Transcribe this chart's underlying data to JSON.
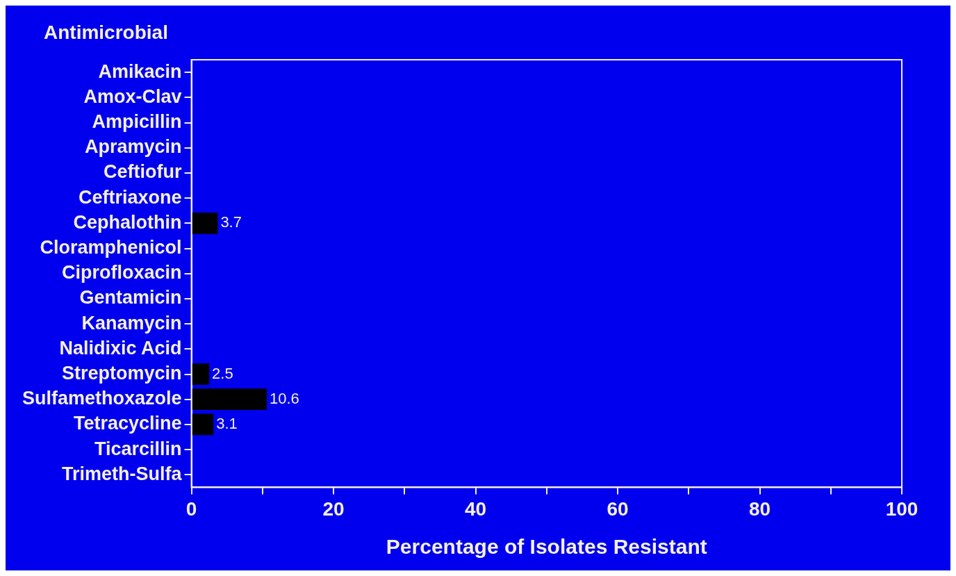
{
  "chart_data": {
    "type": "bar",
    "orientation": "horizontal",
    "ylabel": "Antimicrobial",
    "xlabel": "Percentage of Isolates Resistant",
    "categories": [
      "Amikacin",
      "Amox-Clav",
      "Ampicillin",
      "Apramycin",
      "Ceftiofur",
      "Ceftriaxone",
      "Cephalothin",
      "Cloramphenicol",
      "Ciprofloxacin",
      "Gentamicin",
      "Kanamycin",
      "Nalidixic Acid",
      "Streptomycin",
      "Sulfamethoxazole",
      "Tetracycline",
      "Ticarcillin",
      "Trimeth-Sulfa"
    ],
    "values": [
      0,
      0,
      0,
      0,
      0,
      0,
      3.7,
      0,
      0,
      0,
      0,
      0,
      2.5,
      10.6,
      3.1,
      0,
      0
    ],
    "value_labels": [
      null,
      null,
      null,
      null,
      null,
      null,
      "3.7",
      null,
      null,
      null,
      null,
      null,
      "2.5",
      "10.6",
      "3.1",
      null,
      null
    ],
    "color": "#000000",
    "xlim": [
      0,
      100
    ],
    "xticks": [
      0,
      {
        "value": 10,
        "label": null
      },
      20,
      {
        "value": 30,
        "label": null
      },
      40,
      {
        "value": 50,
        "label": null
      },
      60,
      {
        "value": 70,
        "label": null
      },
      80,
      {
        "value": 90,
        "label": null
      },
      100
    ],
    "grid": false,
    "legend": false
  }
}
